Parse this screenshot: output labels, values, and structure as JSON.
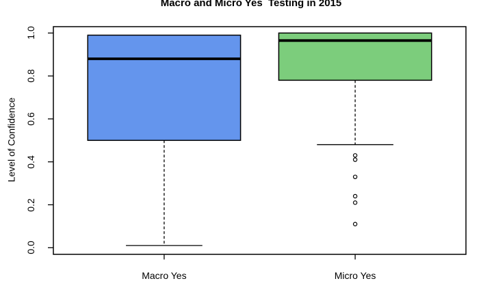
{
  "title": "Macro and Micro Yes  Testing in 2015",
  "y_axis": {
    "label": "Level of Confidence",
    "ticks": [
      "0.0",
      "0.2",
      "0.4",
      "0.6",
      "0.8",
      "1.0"
    ]
  },
  "x_axis": {
    "categories": [
      "Macro Yes",
      "Micro Yes"
    ]
  },
  "colors": {
    "macro_box": "#6495ED",
    "micro_box": "#7CCD7C",
    "axis": "#000000",
    "background": "#FFFFFF"
  },
  "chart_data": {
    "type": "boxplot",
    "title": "Macro and Micro Yes  Testing in 2015",
    "xlabel": "",
    "ylabel": "Level of Confidence",
    "ylim": [
      0,
      1
    ],
    "y_ticks": [
      0,
      0.2,
      0.4,
      0.6,
      0.8,
      1
    ],
    "grid": false,
    "categories": [
      "Macro Yes",
      "Micro Yes"
    ],
    "series": [
      {
        "name": "Macro Yes",
        "color": "#6495ED",
        "whisker_low": 0.01,
        "q1": 0.5,
        "median": 0.88,
        "q3": 0.99,
        "whisker_high": 0.99,
        "outliers": []
      },
      {
        "name": "Micro Yes",
        "color": "#7CCD7C",
        "whisker_low": 0.48,
        "q1": 0.78,
        "median": 0.965,
        "q3": 1.0,
        "whisker_high": 1.0,
        "outliers": [
          0.43,
          0.41,
          0.33,
          0.24,
          0.21,
          0.11
        ]
      }
    ]
  }
}
